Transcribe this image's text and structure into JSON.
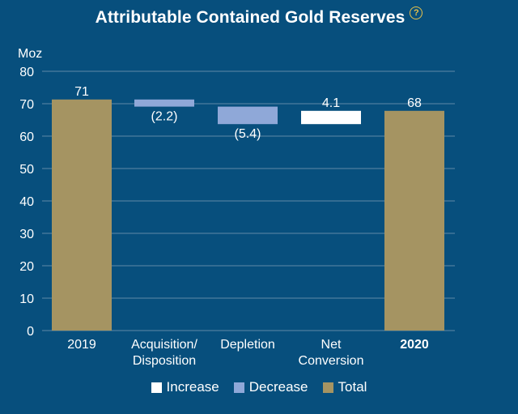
{
  "colors": {
    "background": "#074f7d",
    "increase": "#ffffff",
    "decrease": "#8fa8d8",
    "total": "#a59462",
    "gridline": "#5f8aa6",
    "text": "#ffffff",
    "help_icon": "#e8c24a"
  },
  "help_icon": "question-circle-icon",
  "chart_data": {
    "type": "bar",
    "subtype": "waterfall",
    "title": "Attributable Contained Gold Reserves",
    "ylabel": "Moz",
    "ylim": [
      0,
      80
    ],
    "yticks": [
      "0",
      "10",
      "20",
      "30",
      "40",
      "50",
      "60",
      "70",
      "80"
    ],
    "grid": true,
    "legend_position": "bottom",
    "categories": [
      {
        "label_lines": [
          "2019"
        ],
        "bold": false
      },
      {
        "label_lines": [
          "Acquisition/",
          "Disposition"
        ],
        "bold": false
      },
      {
        "label_lines": [
          "Depletion"
        ],
        "bold": false
      },
      {
        "label_lines": [
          "Net",
          "Conversion"
        ],
        "bold": false
      },
      {
        "label_lines": [
          "2020"
        ],
        "bold": true
      }
    ],
    "bars": [
      {
        "kind": "total",
        "start": 0,
        "end": 71.3,
        "label": "71",
        "label_pos": "above"
      },
      {
        "kind": "decrease",
        "start": 71.3,
        "end": 69.1,
        "label": "(2.2)",
        "label_pos": "below"
      },
      {
        "kind": "decrease",
        "start": 69.1,
        "end": 63.7,
        "label": "(5.4)",
        "label_pos": "below"
      },
      {
        "kind": "increase",
        "start": 63.7,
        "end": 67.8,
        "label": "4.1",
        "label_pos": "above"
      },
      {
        "kind": "total",
        "start": 0,
        "end": 67.8,
        "label": "68",
        "label_pos": "above"
      }
    ],
    "legend": [
      {
        "kind": "increase",
        "label": "Increase"
      },
      {
        "kind": "decrease",
        "label": "Decrease"
      },
      {
        "kind": "total",
        "label": "Total"
      }
    ]
  }
}
